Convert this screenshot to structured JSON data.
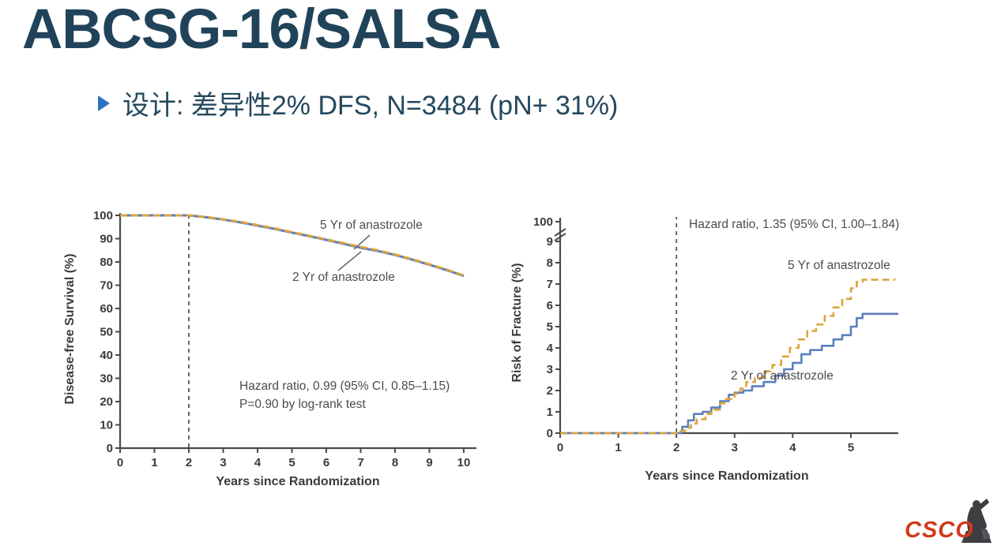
{
  "slide": {
    "title": "ABCSG-16/SALSA",
    "bullet_text": "设计: 差异性2% DFS, N=3484 (pN+ 31%)",
    "title_color": "#20435a",
    "bullet_arrow_color": "#2f6fbf"
  },
  "footer": {
    "logo_text": "CSCO",
    "logo_color": "#d2391b"
  },
  "chart_data": [
    {
      "id": "dfs",
      "type": "line",
      "title": "",
      "xlabel": "Years since Randomization",
      "ylabel": "Disease-free Survival (%)",
      "xlim": [
        0,
        10.35
      ],
      "ylim": [
        0,
        100
      ],
      "xticks": [
        0,
        1,
        2,
        3,
        4,
        5,
        6,
        7,
        8,
        9,
        10
      ],
      "yticks": [
        0,
        10,
        20,
        30,
        40,
        50,
        60,
        70,
        80,
        90,
        100
      ],
      "grid": false,
      "legend_position": "inline-labels",
      "reference_line_x": 2,
      "annotation_lines": [
        "Hazard ratio, 0.99 (95% CI, 0.85–1.15)",
        "P=0.90 by log-rank test"
      ],
      "series": [
        {
          "name": "5 Yr of anastrozole",
          "color": "#dda43e",
          "dashed": true,
          "step": false,
          "x": [
            0,
            0.5,
            1,
            1.5,
            2,
            2.5,
            3,
            3.5,
            4,
            4.5,
            5,
            5.5,
            6,
            6.5,
            7,
            7.5,
            8,
            8.5,
            9,
            9.5,
            10
          ],
          "y": [
            100,
            100,
            100,
            100,
            100,
            99.3,
            98.3,
            97.2,
            95.8,
            94.4,
            92.8,
            91.3,
            89.7,
            88.1,
            86.5,
            85.0,
            83.2,
            81.2,
            79.0,
            76.7,
            74.2
          ]
        },
        {
          "name": "2 Yr of anastrozole",
          "color": "#5b7fbc",
          "dashed": false,
          "step": false,
          "x": [
            0,
            0.5,
            1,
            1.5,
            2,
            2.5,
            3,
            3.5,
            4,
            4.5,
            5,
            5.5,
            6,
            6.5,
            7,
            7.5,
            8,
            8.5,
            9,
            9.5,
            10
          ],
          "y": [
            100,
            100,
            100,
            100,
            100,
            99.2,
            98.2,
            97.0,
            95.6,
            94.2,
            92.6,
            91.1,
            89.5,
            87.8,
            86.1,
            84.7,
            83.0,
            81.0,
            78.8,
            76.5,
            74.0
          ]
        }
      ]
    },
    {
      "id": "frac",
      "type": "line",
      "title": "",
      "xlabel": "Years since Randomization",
      "ylabel": "Risk of Fracture (%)",
      "xlim": [
        0,
        5.8
      ],
      "ylim": [
        0,
        9.6
      ],
      "y_axis_break": true,
      "y_break_label": "100",
      "xticks": [
        0,
        1,
        2,
        3,
        4,
        5
      ],
      "yticks": [
        0,
        1,
        2,
        3,
        4,
        5,
        6,
        7,
        8,
        9
      ],
      "grid": false,
      "legend_position": "inline-labels",
      "reference_line_x": 2,
      "annotation_lines": [
        "Hazard ratio, 1.35 (95% CI, 1.00–1.84)"
      ],
      "series": [
        {
          "name": "5 Yr of anastrozole",
          "color": "#dda43e",
          "dashed": true,
          "step": true,
          "x": [
            0,
            1.9,
            2.05,
            2.15,
            2.25,
            2.35,
            2.5,
            2.6,
            2.75,
            2.85,
            3.0,
            3.1,
            3.2,
            3.35,
            3.5,
            3.65,
            3.8,
            3.95,
            4.1,
            4.25,
            4.4,
            4.55,
            4.7,
            4.85,
            5.0,
            5.1,
            5.2,
            5.75
          ],
          "y": [
            0,
            0,
            0.1,
            0.25,
            0.45,
            0.65,
            0.9,
            1.1,
            1.4,
            1.6,
            1.85,
            2.1,
            2.4,
            2.6,
            2.9,
            3.2,
            3.6,
            4.0,
            4.4,
            4.8,
            5.1,
            5.5,
            5.9,
            6.3,
            6.8,
            7.1,
            7.2,
            7.25
          ]
        },
        {
          "name": "2 Yr of anastrozole",
          "color": "#5b7fbc",
          "dashed": false,
          "step": true,
          "x": [
            0,
            1.95,
            2.1,
            2.2,
            2.3,
            2.45,
            2.6,
            2.75,
            2.9,
            3.0,
            3.15,
            3.3,
            3.5,
            3.7,
            3.85,
            4.0,
            4.15,
            4.3,
            4.5,
            4.7,
            4.85,
            5.0,
            5.1,
            5.2,
            5.8
          ],
          "y": [
            0,
            0,
            0.3,
            0.6,
            0.9,
            1.0,
            1.2,
            1.5,
            1.8,
            1.9,
            2.0,
            2.2,
            2.4,
            2.7,
            3.0,
            3.3,
            3.7,
            3.9,
            4.1,
            4.4,
            4.6,
            5.0,
            5.4,
            5.6,
            5.65
          ]
        }
      ]
    }
  ]
}
